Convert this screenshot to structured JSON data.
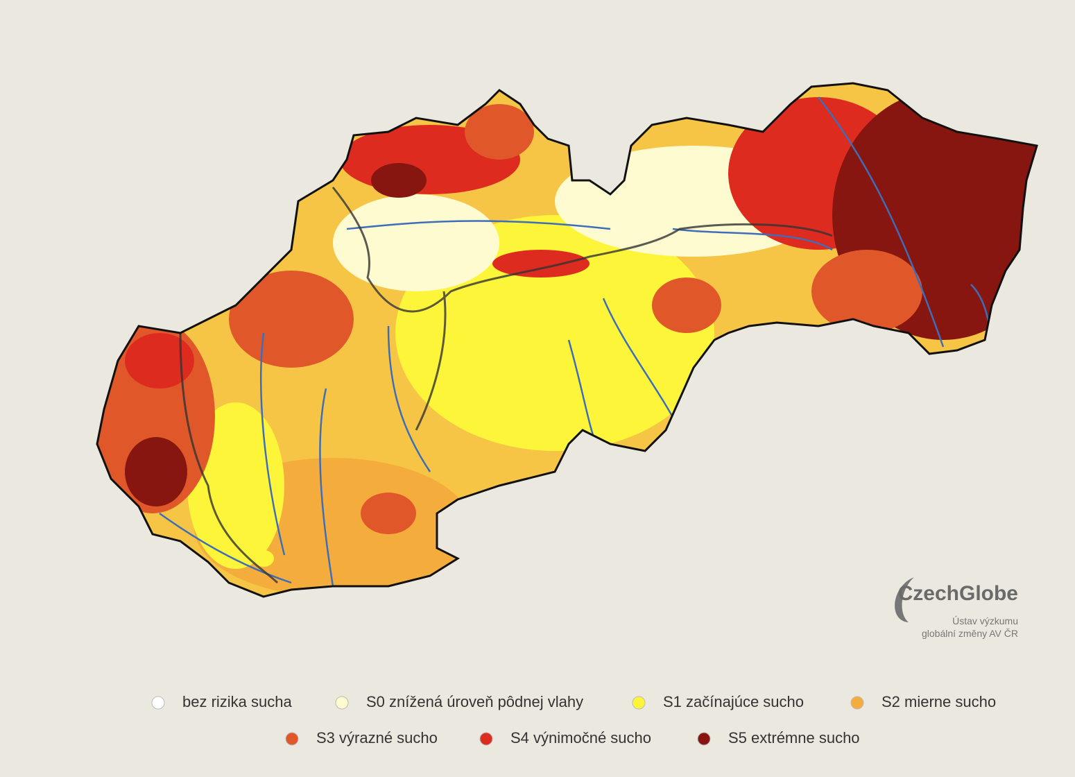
{
  "map": {
    "legend": [
      {
        "label": "bez rizika sucha",
        "color": "#ffffff"
      },
      {
        "label": "S0 znížená úroveň pôdnej vlahy",
        "color": "#fffbd0"
      },
      {
        "label": "S1 začínajúce sucho",
        "color": "#fdf53a"
      },
      {
        "label": "S2 mierne sucho",
        "color": "#f4ad3c"
      },
      {
        "label": "S3 výrazné sucho",
        "color": "#e0582a"
      },
      {
        "label": "S4 výnimočné sucho",
        "color": "#de2b1f"
      },
      {
        "label": "S5 extrémne sucho",
        "color": "#86160f"
      }
    ]
  },
  "logo": {
    "name": "CzechGlobe",
    "lines": [
      "Ústav výzkumu",
      "globální změny AV ČR"
    ]
  }
}
